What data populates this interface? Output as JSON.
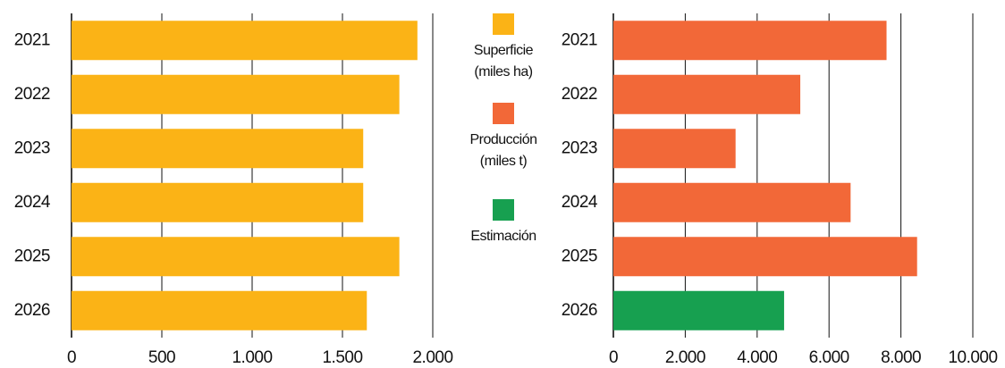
{
  "chart_data": [
    {
      "type": "bar",
      "orientation": "horizontal",
      "categories": [
        "2021",
        "2022",
        "2023",
        "2024",
        "2025",
        "2026"
      ],
      "series": [
        {
          "name": "Superficie (miles ha)",
          "color": "#fbb316",
          "values": [
            1915,
            1815,
            1615,
            1615,
            1815,
            1635
          ]
        }
      ],
      "xlim": [
        0,
        2000
      ],
      "xticks": [
        0,
        500,
        {
          "value": 1000,
          "label": "1.000"
        },
        {
          "value": 1500,
          "label": "1.500"
        },
        {
          "value": 2000,
          "label": "2.000"
        }
      ],
      "grid": true
    },
    {
      "type": "bar",
      "orientation": "horizontal",
      "categories": [
        "2021",
        "2022",
        "2023",
        "2024",
        "2025",
        "2026"
      ],
      "series": [
        {
          "name": "Producción (miles t)",
          "color": "#f26838",
          "values": [
            7600,
            5200,
            3400,
            6600,
            8450,
            null
          ]
        },
        {
          "name": "Estimación",
          "color": "#17a050",
          "values": [
            null,
            null,
            null,
            null,
            null,
            4750
          ]
        }
      ],
      "xlim": [
        0,
        10000
      ],
      "xticks": [
        0,
        {
          "value": 2000,
          "label": "2.000"
        },
        {
          "value": 4000,
          "label": "4.000"
        },
        {
          "value": 6000,
          "label": "6.000"
        },
        {
          "value": 8000,
          "label": "8.000"
        },
        {
          "value": 10000,
          "label": "10.000"
        }
      ],
      "grid": true
    }
  ]
}
